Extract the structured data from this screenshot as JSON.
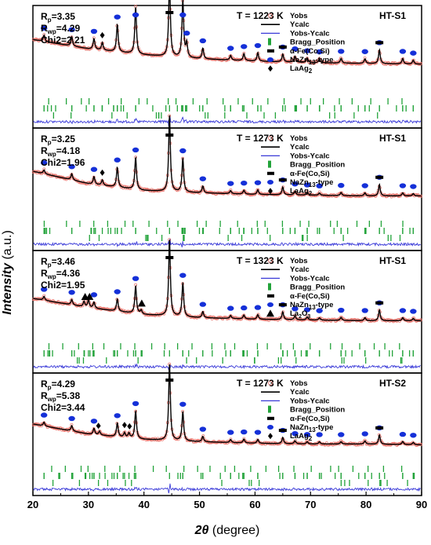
{
  "chart_data": {
    "type": "line",
    "xlabel": "2θ (degree)",
    "ylabel": "Intensity (a.u.)",
    "xlim": [
      20,
      90
    ],
    "x_ticks": [
      20,
      30,
      40,
      50,
      60,
      70,
      80,
      90
    ],
    "colors": {
      "yobs": "#e8736b",
      "ycalc": "#000000",
      "diff": "#3a3ad8",
      "bragg": "#22a33a",
      "nazn": "#1530d8",
      "fe": "#000000"
    },
    "legend_placement": "top-right",
    "panels": [
      {
        "sample": "HT-S1",
        "temperature": "T = 1223 K",
        "stats": {
          "Rp": "3.35",
          "Rwp": "4.29",
          "Chi2": "2.21"
        },
        "legend": [
          "Yobs",
          "Ycalc",
          "Yobs-Ycalc",
          "Bragg_Position",
          "α-Fe(Co,Si)",
          "NaZn13-type",
          "LaAg2"
        ],
        "third_phase_marker": "diamond",
        "background": [
          [
            20,
            0.7
          ],
          [
            30,
            0.58
          ],
          [
            40,
            0.5
          ],
          [
            50,
            0.45
          ],
          [
            60,
            0.42
          ],
          [
            70,
            0.4
          ],
          [
            80,
            0.39
          ],
          [
            90,
            0.38
          ]
        ],
        "peaks": [
          [
            22.0,
            0.08
          ],
          [
            27.0,
            0.12
          ],
          [
            31.0,
            0.14
          ],
          [
            32.5,
            0.1
          ],
          [
            35.2,
            0.36
          ],
          [
            38.5,
            0.62
          ],
          [
            44.6,
            1.0
          ],
          [
            47.0,
            0.74
          ],
          [
            47.7,
            0.18
          ],
          [
            50.6,
            0.14
          ],
          [
            55.6,
            0.06
          ],
          [
            58.0,
            0.09
          ],
          [
            60.5,
            0.11
          ],
          [
            65.0,
            0.1
          ],
          [
            67.2,
            0.08
          ],
          [
            69.4,
            0.06
          ],
          [
            71.6,
            0.05
          ],
          [
            75.5,
            0.06
          ],
          [
            79.8,
            0.06
          ],
          [
            82.4,
            0.18
          ],
          [
            86.6,
            0.07
          ],
          [
            88.5,
            0.05
          ]
        ],
        "nazn13_markers": [
          22.0,
          27.0,
          31.0,
          35.2,
          38.5,
          47.0,
          47.7,
          50.6,
          55.6,
          58.0,
          60.5,
          65.0,
          67.2,
          69.4,
          71.6,
          75.5,
          79.8,
          82.4,
          86.6,
          88.5
        ],
        "fe_markers": [
          44.6,
          65.0,
          82.4
        ],
        "third_phase_markers": [
          32.5
        ]
      },
      {
        "sample": "HT-S1",
        "temperature": "T = 1273 K",
        "stats": {
          "Rp": "3.25",
          "Rwp": "4.18",
          "Chi2": "1.96"
        },
        "legend": [
          "Yobs",
          "Ycalc",
          "Yobs-Ycalc",
          "Bragg_Position",
          "α-Fe(Co,Si)",
          "NaZn13-type",
          "LaAg2"
        ],
        "third_phase_marker": "diamond",
        "background": [
          [
            20,
            0.58
          ],
          [
            30,
            0.42
          ],
          [
            40,
            0.33
          ],
          [
            50,
            0.3
          ],
          [
            60,
            0.28
          ],
          [
            70,
            0.27
          ],
          [
            80,
            0.26
          ],
          [
            90,
            0.26
          ]
        ],
        "peaks": [
          [
            22.0,
            0.05
          ],
          [
            27.0,
            0.08
          ],
          [
            31.0,
            0.1
          ],
          [
            32.5,
            0.07
          ],
          [
            35.2,
            0.26
          ],
          [
            38.5,
            0.42
          ],
          [
            44.6,
            1.0
          ],
          [
            47.0,
            0.44
          ],
          [
            50.6,
            0.09
          ],
          [
            55.6,
            0.04
          ],
          [
            58.0,
            0.05
          ],
          [
            60.5,
            0.06
          ],
          [
            65.0,
            0.1
          ],
          [
            67.2,
            0.05
          ],
          [
            69.4,
            0.04
          ],
          [
            71.6,
            0.03
          ],
          [
            75.5,
            0.04
          ],
          [
            79.8,
            0.04
          ],
          [
            82.4,
            0.15
          ],
          [
            86.6,
            0.04
          ],
          [
            88.5,
            0.03
          ]
        ],
        "nazn13_markers": [
          22.0,
          27.0,
          31.0,
          35.2,
          38.5,
          47.0,
          50.6,
          55.6,
          58.0,
          60.5,
          65.0,
          67.2,
          69.4,
          71.6,
          75.5,
          79.8,
          82.4,
          86.6,
          88.5
        ],
        "fe_markers": [
          44.6,
          65.0,
          82.4
        ],
        "third_phase_markers": [
          32.5
        ]
      },
      {
        "sample": "HT-S1",
        "temperature": "T = 1323 K",
        "stats": {
          "Rp": "3.46",
          "Rwp": "4.36",
          "Chi2": "1.95"
        },
        "legend": [
          "Yobs",
          "Ycalc",
          "Yobs-Ycalc",
          "Bragg_Position",
          "α-Fe(Co,Si)",
          "NaZn13-type",
          "La2O3"
        ],
        "third_phase_marker": "triangle",
        "background": [
          [
            20,
            0.52
          ],
          [
            30,
            0.4
          ],
          [
            40,
            0.31
          ],
          [
            50,
            0.27
          ],
          [
            60,
            0.25
          ],
          [
            70,
            0.24
          ],
          [
            80,
            0.23
          ],
          [
            90,
            0.23
          ]
        ],
        "peaks": [
          [
            22.0,
            0.05
          ],
          [
            27.0,
            0.07
          ],
          [
            29.2,
            0.07
          ],
          [
            30.0,
            0.1
          ],
          [
            31.0,
            0.08
          ],
          [
            35.2,
            0.16
          ],
          [
            38.5,
            0.36
          ],
          [
            39.5,
            0.05
          ],
          [
            44.6,
            1.0
          ],
          [
            47.0,
            0.44
          ],
          [
            50.6,
            0.08
          ],
          [
            55.6,
            0.04
          ],
          [
            58.0,
            0.05
          ],
          [
            60.5,
            0.06
          ],
          [
            65.0,
            0.1
          ],
          [
            67.2,
            0.05
          ],
          [
            69.4,
            0.04
          ],
          [
            71.6,
            0.03
          ],
          [
            75.5,
            0.04
          ],
          [
            79.8,
            0.04
          ],
          [
            82.4,
            0.14
          ],
          [
            86.6,
            0.04
          ],
          [
            88.5,
            0.03
          ]
        ],
        "nazn13_markers": [
          22.0,
          27.0,
          31.0,
          35.2,
          38.5,
          47.0,
          50.6,
          55.6,
          58.0,
          60.5,
          65.0,
          67.2,
          69.4,
          71.6,
          75.5,
          79.8,
          82.4,
          86.6,
          88.5
        ],
        "fe_markers": [
          44.6,
          65.0,
          82.4
        ],
        "third_phase_markers": [
          29.4,
          30.2,
          39.6
        ]
      },
      {
        "sample": "HT-S2",
        "temperature": "T = 1273 K",
        "stats": {
          "Rp": "4.29",
          "Rwp": "5.38",
          "Chi2": "3.44"
        },
        "legend": [
          "Yobs",
          "Ycalc",
          "Yobs-Ycalc",
          "Bragg_Position",
          "α-Fe(Co,Si)",
          "NaZn13-type",
          "LaAg2"
        ],
        "third_phase_marker": "diamond",
        "background": [
          [
            20,
            0.48
          ],
          [
            30,
            0.35
          ],
          [
            40,
            0.28
          ],
          [
            50,
            0.25
          ],
          [
            60,
            0.23
          ],
          [
            70,
            0.22
          ],
          [
            80,
            0.22
          ],
          [
            90,
            0.21
          ]
        ],
        "peaks": [
          [
            22.0,
            0.05
          ],
          [
            27.0,
            0.07
          ],
          [
            31.0,
            0.08
          ],
          [
            32.0,
            0.05
          ],
          [
            35.2,
            0.18
          ],
          [
            36.5,
            0.06
          ],
          [
            37.3,
            0.06
          ],
          [
            38.5,
            0.36
          ],
          [
            44.6,
            1.0
          ],
          [
            47.0,
            0.38
          ],
          [
            50.6,
            0.07
          ],
          [
            55.6,
            0.04
          ],
          [
            58.0,
            0.05
          ],
          [
            60.5,
            0.05
          ],
          [
            65.0,
            0.08
          ],
          [
            67.2,
            0.04
          ],
          [
            69.4,
            0.03
          ],
          [
            71.6,
            0.03
          ],
          [
            75.5,
            0.03
          ],
          [
            79.8,
            0.04
          ],
          [
            82.4,
            0.12
          ],
          [
            86.6,
            0.04
          ],
          [
            88.5,
            0.03
          ]
        ],
        "nazn13_markers": [
          22.0,
          27.0,
          31.0,
          35.2,
          38.5,
          47.0,
          50.6,
          55.6,
          58.0,
          60.5,
          65.0,
          67.2,
          69.4,
          71.6,
          75.5,
          79.8,
          82.4,
          86.6,
          88.5
        ],
        "fe_markers": [
          44.6,
          65.0,
          82.4
        ],
        "third_phase_markers": [
          31.8,
          36.5,
          37.4
        ]
      }
    ]
  }
}
